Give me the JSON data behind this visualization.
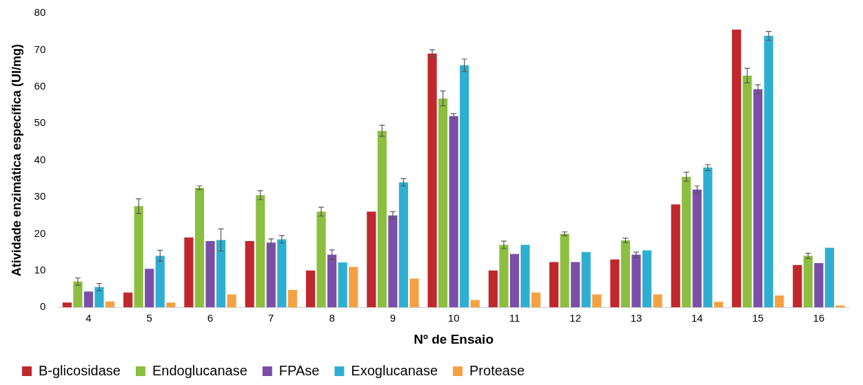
{
  "chart_data": {
    "type": "bar",
    "xlabel": "Nº de Ensaio",
    "ylabel": "Atividade enzimática específica (UI/mg)",
    "categories": [
      "4",
      "5",
      "6",
      "7",
      "8",
      "9",
      "10",
      "11",
      "12",
      "13",
      "14",
      "15",
      "16"
    ],
    "series": [
      {
        "name": "B-glicosidase",
        "color": "#c0282d",
        "values": [
          1.3,
          4,
          19,
          18,
          10,
          26,
          69,
          10,
          12.3,
          13,
          28,
          75.5,
          11.5
        ],
        "errors": [
          null,
          null,
          null,
          null,
          null,
          null,
          1,
          null,
          null,
          null,
          null,
          null,
          null
        ]
      },
      {
        "name": "Endoglucanase",
        "color": "#8cbf3f",
        "values": [
          7,
          27.5,
          32.5,
          30.5,
          26,
          48,
          56.8,
          17,
          20,
          18.2,
          35.5,
          63,
          14
        ],
        "errors": [
          1,
          2,
          0.5,
          1.2,
          1.2,
          1.5,
          2,
          1,
          0.5,
          0.6,
          1.2,
          2,
          0.7
        ]
      },
      {
        "name": "FPAse",
        "color": "#7b4fa8",
        "values": [
          4.3,
          10.5,
          18,
          17.6,
          14.3,
          25,
          52,
          14.5,
          12.3,
          14.3,
          32,
          59.3,
          12
        ],
        "errors": [
          null,
          null,
          null,
          1,
          1.3,
          1,
          0.7,
          null,
          null,
          0.7,
          1,
          1.2,
          null
        ]
      },
      {
        "name": "Exoglucanase",
        "color": "#2eafd1",
        "values": [
          5.5,
          14,
          18.3,
          18.5,
          12.2,
          34,
          65.8,
          17,
          15,
          15.5,
          38,
          73.8,
          16.2
        ],
        "errors": [
          1,
          1.5,
          3,
          1,
          null,
          1,
          1.7,
          null,
          null,
          null,
          0.8,
          1.2,
          null
        ]
      },
      {
        "name": "Protease",
        "color": "#f5a142",
        "values": [
          1.6,
          1.3,
          3.5,
          4.7,
          11,
          7.8,
          2,
          4,
          3.5,
          3.5,
          1.5,
          3.2,
          0.5
        ]
      }
    ],
    "ylim": [
      0,
      80
    ],
    "yticks": [
      0,
      10,
      20,
      30,
      40,
      50,
      60,
      70,
      80
    ],
    "grid": false,
    "legend": "bottom"
  }
}
